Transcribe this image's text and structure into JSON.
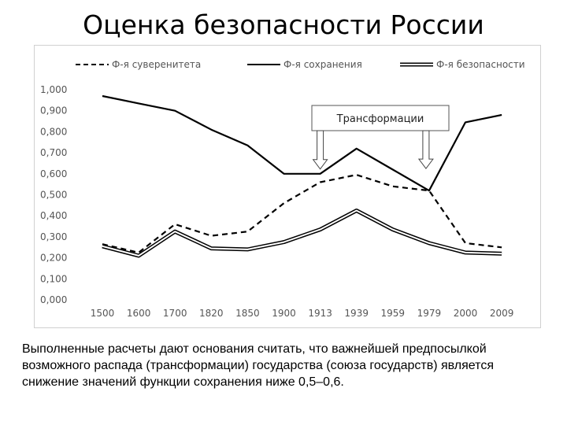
{
  "title": "Оценка безопасности России",
  "caption": "Выполненные расчеты дают основания считать, что важнейшей предпосылкой возможного распада (трансформации) государства (союза государств) является снижение значений функции сохранения ниже 0,5–0,6.",
  "chart_data": {
    "type": "line",
    "categories": [
      "1500",
      "1600",
      "1700",
      "1820",
      "1850",
      "1900",
      "1913",
      "1939",
      "1959",
      "1979",
      "2000",
      "2009"
    ],
    "y_tick_labels": [
      "0,000",
      "0,100",
      "0,200",
      "0,300",
      "0,400",
      "0,500",
      "0,600",
      "0,700",
      "0,800",
      "0,900",
      "1,000"
    ],
    "ylim": [
      0,
      1
    ],
    "grid": false,
    "legend_position": "top",
    "series": [
      {
        "name": "Ф-я суверенитета",
        "style": "dashed",
        "color": "#000000",
        "values": [
          0.265,
          0.225,
          0.36,
          0.305,
          0.325,
          0.46,
          0.56,
          0.595,
          0.54,
          0.52,
          0.27,
          0.25
        ]
      },
      {
        "name": "Ф-я сохранения",
        "style": "solid",
        "color": "#000000",
        "values": [
          0.97,
          0.935,
          0.9,
          0.81,
          0.735,
          0.6,
          0.6,
          0.72,
          0.62,
          0.52,
          0.845,
          0.88
        ]
      },
      {
        "name": "Ф-я безопасности",
        "style": "double",
        "color": "#000000",
        "values": [
          0.255,
          0.21,
          0.325,
          0.245,
          0.24,
          0.275,
          0.335,
          0.425,
          0.335,
          0.27,
          0.225,
          0.22
        ]
      }
    ],
    "annotation": {
      "text": "Трансформации",
      "arrow_targets": [
        {
          "category": "1913",
          "value": 0.6
        },
        {
          "category": "1979",
          "value": 0.52
        }
      ]
    }
  }
}
